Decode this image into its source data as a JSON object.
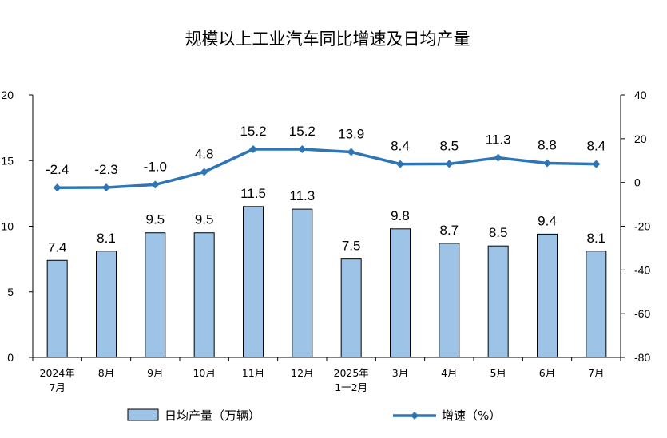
{
  "chart_data": {
    "type": "bar",
    "title": "规模以上工业汽车同比增速及日均产量",
    "categories": [
      [
        "2024年",
        "7月"
      ],
      [
        "8月"
      ],
      [
        "9月"
      ],
      [
        "10月"
      ],
      [
        "11月"
      ],
      [
        "12月"
      ],
      [
        "2025年",
        "1一2月"
      ],
      [
        "3月"
      ],
      [
        "4月"
      ],
      [
        "5月"
      ],
      [
        "6月"
      ],
      [
        "7月"
      ]
    ],
    "series": [
      {
        "name": "日均产量（万辆）",
        "type": "bar",
        "axis": "left",
        "values": [
          7.4,
          8.1,
          9.5,
          9.5,
          11.5,
          11.3,
          7.5,
          9.8,
          8.7,
          8.5,
          9.4,
          8.1
        ],
        "labels": [
          "7.4",
          "8.1",
          "9.5",
          "9.5",
          "11.5",
          "11.3",
          "7.5",
          "9.8",
          "8.7",
          "8.5",
          "9.4",
          "8.1"
        ]
      },
      {
        "name": "增速（%）",
        "type": "line",
        "axis": "right",
        "values": [
          -2.4,
          -2.3,
          -1.0,
          4.8,
          15.2,
          15.2,
          13.9,
          8.4,
          8.5,
          11.3,
          8.8,
          8.4
        ],
        "labels": [
          "-2.4",
          "-2.3",
          "-1.0",
          "4.8",
          "15.2",
          "15.2",
          "13.9",
          "8.4",
          "8.5",
          "11.3",
          "8.8",
          "8.4"
        ]
      }
    ],
    "y_left": {
      "range": [
        0,
        20
      ],
      "ticks": [
        "0",
        "5",
        "10",
        "15",
        "20"
      ]
    },
    "y_right": {
      "range": [
        -80,
        40
      ],
      "ticks": [
        "-80",
        "-60",
        "-40",
        "-20",
        "0",
        "20",
        "40"
      ]
    },
    "grid": false,
    "legend": "bottom"
  },
  "colors": {
    "bar_fill": "#9dc3e6",
    "bar_stroke": "#000000",
    "line": "#2e75b6",
    "axis": "#000000"
  }
}
